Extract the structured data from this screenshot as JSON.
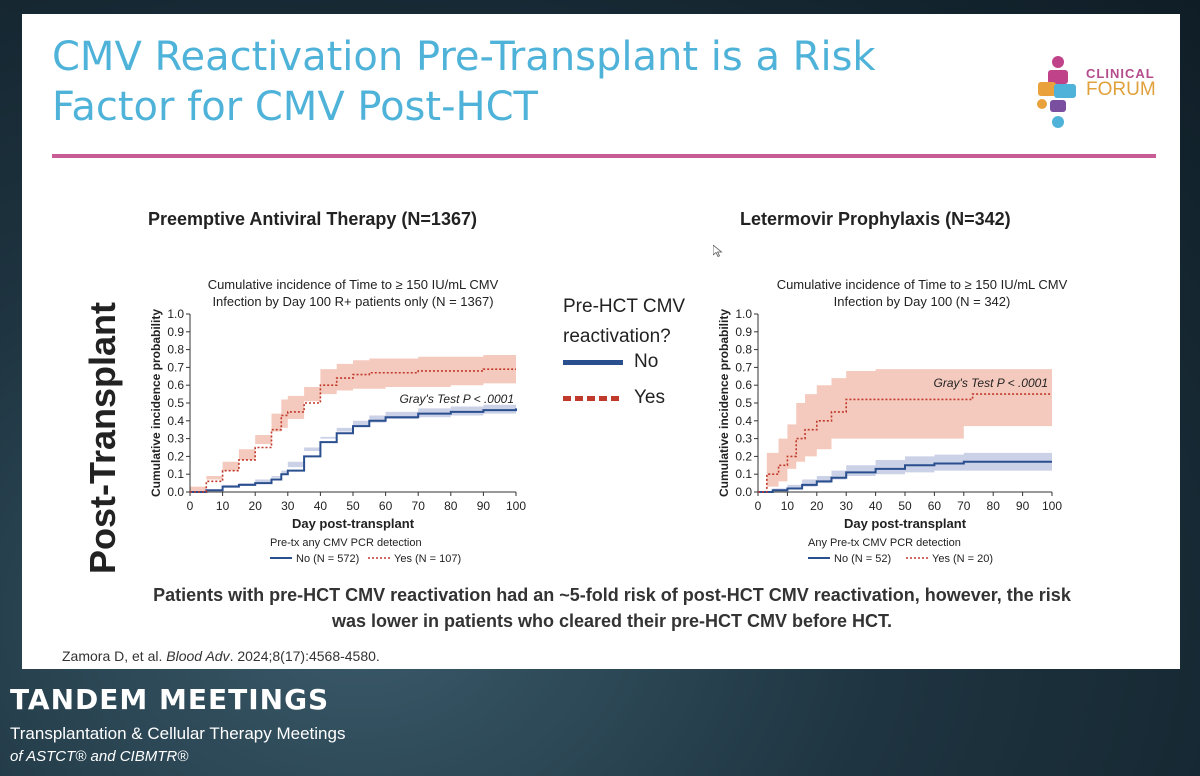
{
  "slide": {
    "title_line1": "CMV Reactivation Pre-Transplant is a Risk",
    "title_line2": "Factor for CMV Post-HCT",
    "logo": {
      "line1": "CLINICAL",
      "line2": "FORUM"
    },
    "side_label": "Post-Transplant",
    "left_heading": "Preemptive Antiviral Therapy (N=1367)",
    "right_heading": "Letermovir Prophylaxis (N=342)",
    "legend": {
      "title_line1": "Pre-HCT CMV",
      "title_line2": "reactivation?",
      "no_label": "No",
      "yes_label": "Yes"
    },
    "conclusion_line1": "Patients with pre-HCT CMV reactivation had an ~5-fold risk of post-HCT CMV reactivation, however, the risk",
    "conclusion_line2": "was lower in patients who cleared their pre-HCT CMV before HCT.",
    "citation_pre": "Zamora D, et al. ",
    "citation_journal": "Blood Adv",
    "citation_post": ". 2024;8(17):4568-4580."
  },
  "footer": {
    "title": "TANDEM MEETINGS",
    "sub1": "Transplantation & Cellular Therapy Meetings",
    "sub2": "of ASTCT® and CIBMTR®"
  },
  "colors": {
    "accent_blue": "#4fb3d9",
    "rule_pink": "#c85d95",
    "no_line": "#2a4f8f",
    "yes_line": "#c0392b",
    "no_band": "#b9c1dd",
    "yes_band": "#f2b8a8"
  },
  "chart_data": [
    {
      "type": "line",
      "title_line1": "Cumulative incidence of Time to ≥ 150 IU/mL CMV",
      "title_line2": "Infection by Day 100 R+ patients only (N = 1367)",
      "xlabel": "Day post-transplant",
      "ylabel": "Cumulative incidence probability",
      "xlim": [
        0,
        100
      ],
      "ylim": [
        0,
        1.0
      ],
      "xticks": [
        0,
        10,
        20,
        30,
        40,
        50,
        60,
        70,
        80,
        90,
        100
      ],
      "yticks": [
        0.0,
        0.1,
        0.2,
        0.3,
        0.4,
        0.5,
        0.6,
        0.7,
        0.8,
        0.9,
        1.0
      ],
      "annotation": "Gray's Test P < .0001",
      "legend_title": "Pre-tx any CMV PCR detection",
      "series": [
        {
          "name": "No (N = 572)",
          "style": "solid",
          "x": [
            0,
            5,
            10,
            15,
            20,
            25,
            28,
            30,
            35,
            40,
            45,
            50,
            55,
            60,
            70,
            80,
            90,
            100
          ],
          "y": [
            0,
            0.01,
            0.03,
            0.04,
            0.05,
            0.07,
            0.1,
            0.12,
            0.2,
            0.28,
            0.33,
            0.37,
            0.4,
            0.42,
            0.44,
            0.45,
            0.46,
            0.47
          ],
          "lower": [
            0,
            0.0,
            0.02,
            0.03,
            0.04,
            0.05,
            0.08,
            0.1,
            0.17,
            0.25,
            0.3,
            0.34,
            0.37,
            0.39,
            0.41,
            0.42,
            0.43,
            0.44
          ],
          "upper": [
            0,
            0.02,
            0.04,
            0.05,
            0.07,
            0.09,
            0.12,
            0.14,
            0.23,
            0.31,
            0.36,
            0.4,
            0.43,
            0.45,
            0.47,
            0.48,
            0.49,
            0.5
          ]
        },
        {
          "name": "Yes (N = 107)",
          "style": "dotted",
          "x": [
            0,
            5,
            10,
            15,
            20,
            25,
            28,
            30,
            35,
            40,
            45,
            50,
            55,
            60,
            70,
            80,
            90,
            100
          ],
          "y": [
            0,
            0.06,
            0.12,
            0.18,
            0.25,
            0.35,
            0.43,
            0.45,
            0.5,
            0.6,
            0.64,
            0.66,
            0.67,
            0.67,
            0.68,
            0.68,
            0.69,
            0.69
          ],
          "lower": [
            0,
            0.03,
            0.07,
            0.12,
            0.18,
            0.27,
            0.34,
            0.36,
            0.41,
            0.51,
            0.55,
            0.57,
            0.58,
            0.58,
            0.59,
            0.59,
            0.6,
            0.61
          ],
          "upper": [
            0,
            0.09,
            0.17,
            0.24,
            0.32,
            0.44,
            0.52,
            0.54,
            0.59,
            0.69,
            0.72,
            0.74,
            0.75,
            0.75,
            0.76,
            0.76,
            0.77,
            0.77
          ]
        }
      ]
    },
    {
      "type": "line",
      "title_line1": "Cumulative incidence of Time to ≥ 150 IU/mL CMV",
      "title_line2": "Infection by Day 100 (N = 342)",
      "xlabel": "Day post-transplant",
      "ylabel": "Cumulative incidence probability",
      "xlim": [
        0,
        100
      ],
      "ylim": [
        0,
        1.0
      ],
      "xticks": [
        0,
        10,
        20,
        30,
        40,
        50,
        60,
        70,
        80,
        90,
        100
      ],
      "yticks": [
        0.0,
        0.1,
        0.2,
        0.3,
        0.4,
        0.5,
        0.6,
        0.7,
        0.8,
        0.9,
        1.0
      ],
      "annotation": "Gray's Test P < .0001",
      "legend_title": "Any Pre-tx CMV PCR detection",
      "series": [
        {
          "name": "No (N = 52)",
          "style": "solid",
          "x": [
            0,
            5,
            10,
            15,
            20,
            25,
            30,
            40,
            50,
            60,
            70,
            80,
            90,
            100
          ],
          "y": [
            0,
            0.01,
            0.02,
            0.04,
            0.06,
            0.08,
            0.11,
            0.13,
            0.15,
            0.16,
            0.17,
            0.17,
            0.17,
            0.17
          ],
          "lower": [
            0,
            0.0,
            0.01,
            0.02,
            0.03,
            0.05,
            0.07,
            0.09,
            0.1,
            0.11,
            0.12,
            0.12,
            0.12,
            0.12
          ],
          "upper": [
            0,
            0.02,
            0.04,
            0.07,
            0.09,
            0.12,
            0.15,
            0.18,
            0.2,
            0.21,
            0.22,
            0.22,
            0.22,
            0.22
          ]
        },
        {
          "name": "Yes (N = 20)",
          "style": "dotted",
          "x": [
            0,
            3,
            7,
            10,
            13,
            16,
            20,
            25,
            30,
            40,
            50,
            60,
            70,
            73,
            80,
            90,
            100
          ],
          "y": [
            0,
            0.1,
            0.15,
            0.2,
            0.3,
            0.35,
            0.4,
            0.45,
            0.52,
            0.52,
            0.52,
            0.52,
            0.52,
            0.55,
            0.55,
            0.55,
            0.55
          ],
          "lower": [
            0,
            0.0,
            0.03,
            0.06,
            0.13,
            0.17,
            0.2,
            0.24,
            0.3,
            0.3,
            0.3,
            0.3,
            0.3,
            0.37,
            0.37,
            0.37,
            0.37
          ],
          "upper": [
            0,
            0.22,
            0.3,
            0.38,
            0.5,
            0.55,
            0.6,
            0.64,
            0.68,
            0.69,
            0.69,
            0.69,
            0.69,
            0.69,
            0.69,
            0.69,
            0.69
          ]
        }
      ]
    }
  ]
}
